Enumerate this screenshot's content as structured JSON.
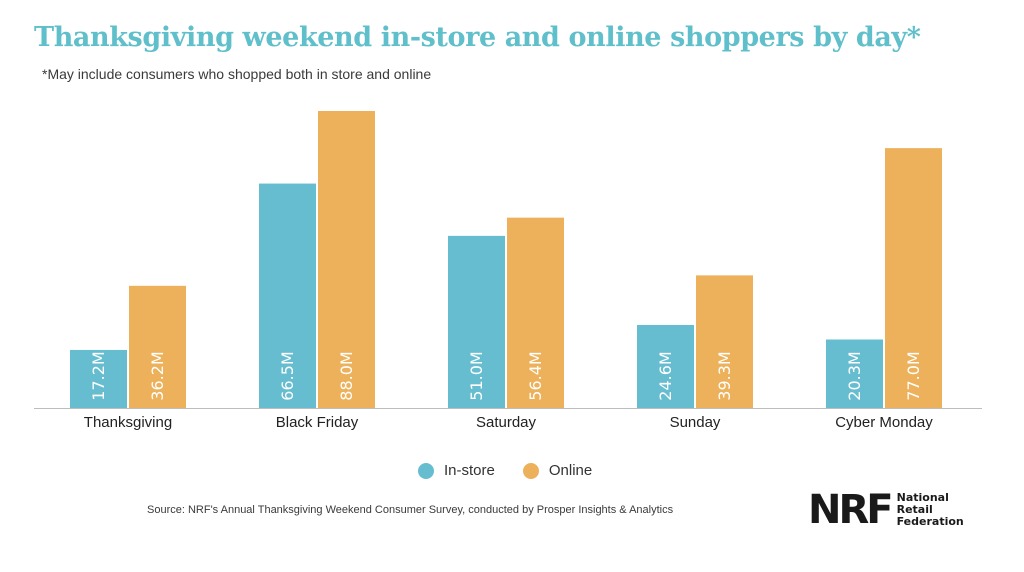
{
  "header": {
    "title": "Thanksgiving weekend in-store and online shoppers by day*",
    "subtitle": "*May include consumers who shopped both in store and online"
  },
  "footer": {
    "source": "Source: NRF's Annual Thanksgiving Weekend Consumer Survey, conducted by Prosper Insights & Analytics",
    "logo_mark": "NRF",
    "logo_name": "National Retail Federation"
  },
  "colors": {
    "in_store": "#67bdd0",
    "online": "#ecb15a",
    "title": "#5fbfca"
  },
  "chart_data": {
    "type": "bar",
    "title": "Thanksgiving weekend in-store and online shoppers by day*",
    "xlabel": "",
    "ylabel": "",
    "ylim": [
      0,
      88
    ],
    "grid": false,
    "legend_position": "bottom-center",
    "categories": [
      "Thanksgiving",
      "Black Friday",
      "Saturday",
      "Sunday",
      "Cyber Monday"
    ],
    "series": [
      {
        "name": "In-store",
        "values": [
          17.2,
          66.5,
          51.0,
          24.6,
          20.3
        ],
        "labels": [
          "17.2M",
          "66.5M",
          "51.0M",
          "24.6M",
          "20.3M"
        ]
      },
      {
        "name": "Online",
        "values": [
          36.2,
          88.0,
          56.4,
          39.3,
          77.0
        ],
        "labels": [
          "36.2M",
          "88.0M",
          "56.4M",
          "39.3M",
          "77.0M"
        ]
      }
    ]
  }
}
